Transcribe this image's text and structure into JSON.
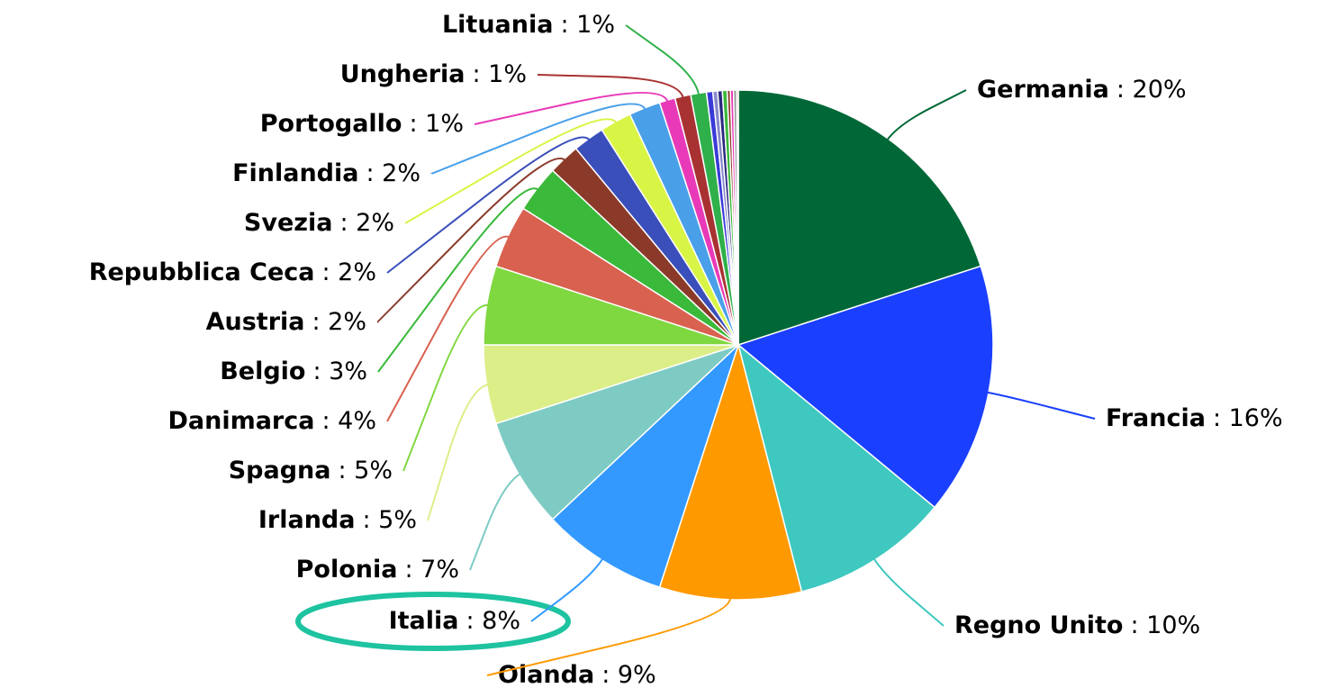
{
  "chart_data": {
    "type": "pie",
    "categories": [
      "Germania",
      "Francia",
      "Regno Unito",
      "Olanda",
      "Italia",
      "Polonia",
      "Irlanda",
      "Spagna",
      "Danimarca",
      "Belgio",
      "Austria",
      "Repubblica Ceca",
      "Svezia",
      "Finlandia",
      "Portogallo",
      "Ungheria",
      "Lituania",
      null,
      null,
      null,
      null,
      null,
      null,
      null,
      null
    ],
    "values": [
      20,
      16,
      10,
      9,
      8,
      7,
      5,
      5,
      4,
      3,
      2,
      2,
      2,
      2,
      1,
      1,
      1,
      0.4,
      0.3,
      0.3,
      0.3,
      0.2,
      0.2,
      0.2,
      0.1
    ],
    "value_labels": [
      ": 20%",
      ": 16%",
      ": 10%",
      ": 9%",
      ": 8%",
      ": 7%",
      ": 5%",
      ": 5%",
      ": 4%",
      ": 3%",
      ": 2%",
      ": 2%",
      ": 2%",
      ": 2%",
      ": 1%",
      ": 1%",
      ": 1%",
      null,
      null,
      null,
      null,
      null,
      null,
      null,
      null
    ],
    "colors": [
      "#006837",
      "#1a3fff",
      "#3ec8c0",
      "#ff9900",
      "#3399ff",
      "#7ecbc4",
      "#dcee88",
      "#80d840",
      "#d96150",
      "#3ab93a",
      "#8b3a2a",
      "#3a4fba",
      "#d8f545",
      "#4aa0e8",
      "#e83ab8",
      "#a83232",
      "#2fb04a",
      "#3a3ad8",
      "#8888cc",
      "#2a2a80",
      "#3ab93a",
      "#8b3a2a",
      "#e83ab8",
      "#999999",
      "#d96150"
    ]
  }
}
